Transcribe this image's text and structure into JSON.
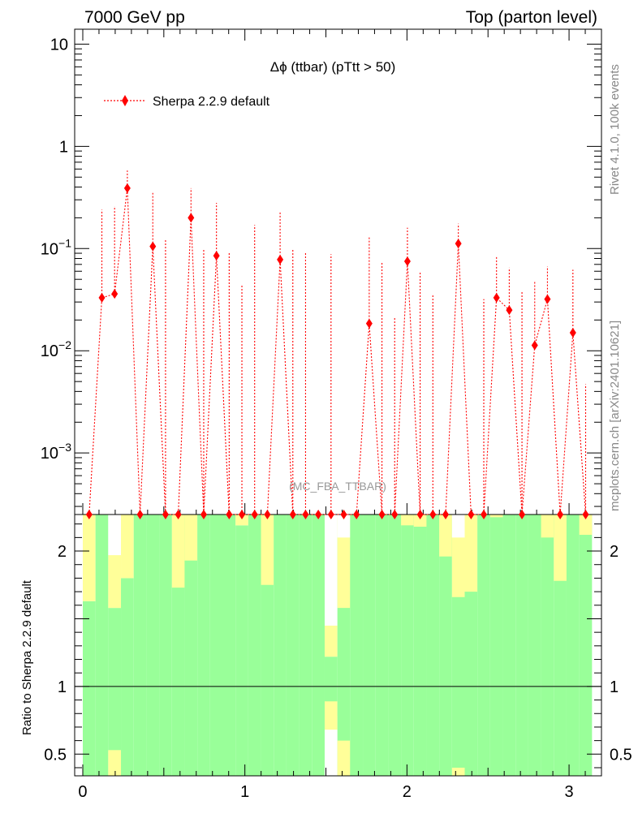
{
  "header": {
    "left": "7000 GeV pp",
    "right": "Top (parton level)"
  },
  "side_labels": {
    "rivet": "Rivet 4.1.0,  100k events",
    "mcplots": "mcplots.cern.ch [arXiv:2401.10621]"
  },
  "colors": {
    "series": "#ff0000",
    "band_inner": "#99ff99",
    "band_outer": "#ffff99"
  },
  "chart_data": [
    {
      "type": "scatter",
      "title": "Δϕ (ttbar) (pTtt > 50)",
      "watermark": "(MC_FBA_TTBAR)",
      "yscale": "log",
      "ylim": [
        0.00025,
        14
      ],
      "xlim": [
        -0.05,
        3.2
      ],
      "yticks": [
        {
          "value": 0.001,
          "label": "10",
          "exp": "−3"
        },
        {
          "value": 0.01,
          "label": "10",
          "exp": "−2"
        },
        {
          "value": 0.1,
          "label": "10",
          "exp": "−1"
        },
        {
          "value": 1,
          "label": "1",
          "exp": ""
        },
        {
          "value": 10,
          "label": "10",
          "exp": ""
        }
      ],
      "legend": {
        "position": "top-left",
        "entries": [
          "Sherpa 2.2.9 default"
        ]
      },
      "series": [
        {
          "name": "Sherpa 2.2.9 default",
          "x": [
            0.0393,
            0.1178,
            0.1963,
            0.2749,
            0.3534,
            0.432,
            0.5105,
            0.589,
            0.6676,
            0.7461,
            0.8247,
            0.9032,
            0.9817,
            1.0603,
            1.1388,
            1.2174,
            1.2959,
            1.3744,
            1.453,
            1.5315,
            1.6101,
            1.6886,
            1.7671,
            1.8457,
            1.9242,
            2.0028,
            2.0813,
            2.1598,
            2.2384,
            2.3169,
            2.3955,
            2.474,
            2.5525,
            2.6311,
            2.7096,
            2.7882,
            2.8667,
            2.9452,
            3.0238,
            3.1023
          ],
          "y": [
            0.00025,
            0.033,
            0.036,
            0.39,
            0.00025,
            0.105,
            0.00025,
            0.00025,
            0.2,
            0.00025,
            0.085,
            0.00025,
            0.00025,
            0.00025,
            0.00025,
            0.078,
            0.00025,
            0.00025,
            0.00025,
            0.00025,
            0.00025,
            0.00025,
            0.0185,
            0.00025,
            0.00025,
            0.075,
            0.00025,
            0.00025,
            0.00025,
            0.112,
            0.00025,
            0.00025,
            0.033,
            0.025,
            0.00025,
            0.0113,
            0.032,
            0.00025,
            0.015,
            0.00025
          ],
          "yerr_up": [
            0.00025,
            0.24,
            0.26,
            0.58,
            0.00025,
            0.35,
            0.125,
            0.00025,
            0.39,
            0.1,
            0.28,
            0.09,
            0.045,
            0.17,
            0.00025,
            0.23,
            0.1,
            0.09,
            0.00025,
            0.088,
            0.00025,
            0.00025,
            0.13,
            0.075,
            0.021,
            0.16,
            0.06,
            0.036,
            0.00025,
            0.175,
            0.00025,
            0.032,
            0.085,
            0.065,
            0.038,
            0.048,
            0.067,
            0.00025,
            0.062,
            0.0047
          ]
        }
      ]
    },
    {
      "type": "bar",
      "ylabel": "Ratio to Sherpa 2.2.9 default",
      "ylim": [
        0.34,
        2.27
      ],
      "xlim": [
        -0.05,
        3.2
      ],
      "xticks": [
        0,
        1,
        2,
        3
      ],
      "yticks": [
        0.5,
        1,
        2
      ],
      "reference_line": 1,
      "bin_edges": [
        0,
        0.0785,
        0.1571,
        0.2356,
        0.3142,
        0.3927,
        0.4712,
        0.5498,
        0.6283,
        0.7069,
        0.7854,
        0.8639,
        0.9425,
        1.021,
        1.0996,
        1.1781,
        1.2566,
        1.3352,
        1.4137,
        1.4923,
        1.5708,
        1.6493,
        1.7279,
        1.8064,
        1.885,
        1.9635,
        2.042,
        2.1206,
        2.1991,
        2.2777,
        2.3562,
        2.4347,
        2.5133,
        2.5918,
        2.6704,
        2.7489,
        2.8274,
        2.906,
        2.9845,
        3.0631,
        3.1416
      ],
      "inner_band": [
        [
          0.34,
          1.63
        ],
        [
          0.34,
          2.27
        ],
        [
          0.52,
          1.58
        ],
        [
          0.34,
          1.8
        ],
        [
          0.34,
          2.27
        ],
        [
          0.34,
          2.27
        ],
        [
          0.34,
          2.27
        ],
        [
          0.34,
          2.27
        ],
        [
          0.34,
          2.27
        ],
        [
          0.34,
          2.27
        ],
        [
          0.34,
          2.27
        ],
        [
          0.34,
          2.27
        ],
        [
          0.34,
          2.19
        ],
        [
          0.34,
          2.27
        ],
        [
          0.34,
          2.27
        ],
        [
          0.34,
          2.27
        ],
        [
          0.34,
          2.27
        ],
        [
          0.34,
          2.27
        ],
        [
          0.34,
          2.27
        ],
        [
          0.78,
          1.22
        ],
        [
          0.34,
          2.27
        ],
        [
          0.34,
          2.27
        ],
        [
          0.34,
          2.27
        ],
        [
          0.34,
          2.27
        ],
        [
          0.34,
          2.27
        ],
        [
          0.34,
          2.27
        ],
        [
          0.34,
          2.27
        ],
        [
          0.34,
          2.27
        ],
        [
          0.34,
          2.27
        ],
        [
          0.34,
          2.27
        ],
        [
          0.34,
          2.27
        ],
        [
          0.34,
          2.27
        ],
        [
          0.34,
          2.27
        ],
        [
          0.34,
          2.27
        ],
        [
          0.34,
          2.27
        ],
        [
          0.34,
          2.27
        ],
        [
          0.34,
          2.27
        ],
        [
          0.34,
          2.27
        ],
        [
          0.34,
          2.27
        ],
        [
          0.34,
          2.27
        ]
      ],
      "outer_band": [
        [
          0.34,
          2.27
        ],
        [
          0.34,
          2.27
        ],
        [
          0.34,
          2.27
        ],
        [
          0.34,
          2.27
        ],
        [
          0.34,
          2.27
        ],
        [
          0.34,
          2.27
        ],
        [
          0.34,
          2.27
        ],
        [
          0.34,
          2.27
        ],
        [
          0.34,
          2.27
        ],
        [
          0.34,
          2.27
        ],
        [
          0.34,
          2.27
        ],
        [
          0.34,
          2.27
        ],
        [
          0.34,
          2.27
        ],
        [
          0.34,
          2.27
        ],
        [
          0.34,
          2.27
        ],
        [
          0.34,
          2.27
        ],
        [
          0.34,
          2.27
        ],
        [
          0.34,
          2.27
        ],
        [
          0.34,
          2.27
        ],
        [
          0.68,
          1.45
        ],
        [
          0.34,
          2.27
        ],
        [
          0.34,
          2.27
        ],
        [
          0.34,
          2.27
        ],
        [
          0.34,
          2.27
        ],
        [
          0.34,
          2.27
        ],
        [
          0.34,
          2.27
        ],
        [
          0.34,
          2.27
        ],
        [
          0.34,
          2.27
        ],
        [
          0.34,
          2.27
        ],
        [
          0.34,
          2.27
        ],
        [
          0.34,
          2.27
        ],
        [
          0.34,
          2.27
        ],
        [
          0.34,
          2.27
        ],
        [
          0.34,
          2.27
        ],
        [
          0.34,
          2.27
        ],
        [
          0.34,
          2.27
        ],
        [
          0.34,
          2.27
        ],
        [
          0.34,
          2.27
        ],
        [
          0.34,
          2.27
        ],
        [
          0.34,
          2.27
        ]
      ],
      "outer_low_override": [
        [
          null,
          null
        ],
        [
          null,
          null
        ],
        [
          0.34,
          0.53
        ],
        [
          null,
          null
        ],
        [
          null,
          null
        ],
        [
          null,
          null
        ],
        [
          null,
          null
        ],
        [
          null,
          null
        ],
        [
          null,
          null
        ],
        [
          null,
          null
        ],
        [
          null,
          null
        ],
        [
          null,
          null
        ],
        [
          null,
          null
        ],
        [
          null,
          null
        ],
        [
          null,
          null
        ],
        [
          null,
          null
        ],
        [
          null,
          null
        ],
        [
          null,
          null
        ],
        [
          null,
          null
        ],
        [
          0.68,
          0.89
        ],
        [
          0.34,
          0.6
        ],
        [
          null,
          null
        ],
        [
          null,
          null
        ],
        [
          null,
          null
        ],
        [
          null,
          null
        ],
        [
          null,
          null
        ],
        [
          null,
          null
        ],
        [
          null,
          null
        ],
        [
          null,
          null
        ],
        [
          0.34,
          0.4
        ],
        [
          null,
          null
        ],
        [
          null,
          null
        ],
        [
          null,
          null
        ],
        [
          null,
          null
        ],
        [
          null,
          null
        ],
        [
          null,
          null
        ],
        [
          null,
          null
        ],
        [
          null,
          null
        ],
        [
          null,
          null
        ],
        [
          null,
          null
        ]
      ],
      "outer_high_override": [
        [
          1.63,
          2.27
        ],
        [
          null,
          null
        ],
        [
          1.58,
          1.97
        ],
        [
          1.8,
          2.27
        ],
        [
          null,
          null
        ],
        [
          null,
          null
        ],
        [
          null,
          null
        ],
        [
          1.73,
          2.27
        ],
        [
          1.93,
          2.27
        ],
        [
          null,
          null
        ],
        [
          null,
          null
        ],
        [
          null,
          null
        ],
        [
          2.19,
          2.27
        ],
        [
          null,
          null
        ],
        [
          1.75,
          2.27
        ],
        [
          null,
          null
        ],
        [
          null,
          null
        ],
        [
          null,
          null
        ],
        [
          null,
          null
        ],
        [
          1.22,
          1.45
        ],
        [
          1.58,
          2.27
        ],
        [
          null,
          null
        ],
        [
          null,
          null
        ],
        [
          null,
          null
        ],
        [
          null,
          null
        ],
        [
          2.19,
          2.27
        ],
        [
          2.18,
          2.27
        ],
        [
          null,
          null
        ],
        [
          1.96,
          2.27
        ],
        [
          1.66,
          2.27
        ],
        [
          1.7,
          2.27
        ],
        [
          null,
          null
        ],
        [
          2.25,
          2.27
        ],
        [
          null,
          null
        ],
        [
          null,
          null
        ],
        [
          null,
          null
        ],
        [
          2.1,
          2.27
        ],
        [
          1.78,
          2.27
        ],
        [
          null,
          null
        ],
        [
          2.12,
          2.27
        ]
      ],
      "white_gaps": [
        [
          null,
          null
        ],
        [
          null,
          null
        ],
        [
          1.97,
          2.27
        ],
        [
          null,
          null
        ],
        [
          null,
          null
        ],
        [
          null,
          null
        ],
        [
          null,
          null
        ],
        [
          null,
          null
        ],
        [
          null,
          null
        ],
        [
          null,
          null
        ],
        [
          null,
          null
        ],
        [
          null,
          null
        ],
        [
          null,
          null
        ],
        [
          null,
          null
        ],
        [
          null,
          null
        ],
        [
          null,
          null
        ],
        [
          null,
          null
        ],
        [
          null,
          null
        ],
        [
          null,
          null
        ],
        [
          1.45,
          2.27
        ],
        [
          null,
          null
        ],
        [
          null,
          null
        ],
        [
          null,
          null
        ],
        [
          null,
          null
        ],
        [
          null,
          null
        ],
        [
          null,
          null
        ],
        [
          null,
          null
        ],
        [
          null,
          null
        ],
        [
          null,
          null
        ],
        [
          2.1,
          2.27
        ],
        [
          null,
          null
        ],
        [
          null,
          null
        ],
        [
          null,
          null
        ],
        [
          null,
          null
        ],
        [
          null,
          null
        ],
        [
          null,
          null
        ],
        [
          null,
          null
        ],
        [
          null,
          null
        ],
        [
          null,
          null
        ],
        [
          null,
          null
        ]
      ],
      "white_gaps_low": [
        [
          null,
          null
        ],
        [
          null,
          null
        ],
        [
          null,
          null
        ],
        [
          null,
          null
        ],
        [
          null,
          null
        ],
        [
          null,
          null
        ],
        [
          null,
          null
        ],
        [
          null,
          null
        ],
        [
          null,
          null
        ],
        [
          null,
          null
        ],
        [
          null,
          null
        ],
        [
          null,
          null
        ],
        [
          null,
          null
        ],
        [
          null,
          null
        ],
        [
          null,
          null
        ],
        [
          null,
          null
        ],
        [
          null,
          null
        ],
        [
          null,
          null
        ],
        [
          null,
          null
        ],
        [
          0.34,
          0.68
        ],
        [
          null,
          null
        ],
        [
          null,
          null
        ],
        [
          null,
          null
        ],
        [
          null,
          null
        ],
        [
          null,
          null
        ],
        [
          null,
          null
        ],
        [
          null,
          null
        ],
        [
          null,
          null
        ],
        [
          null,
          null
        ],
        [
          null,
          null
        ],
        [
          null,
          null
        ],
        [
          null,
          null
        ],
        [
          null,
          null
        ],
        [
          null,
          null
        ],
        [
          null,
          null
        ],
        [
          null,
          null
        ],
        [
          null,
          null
        ],
        [
          null,
          null
        ],
        [
          null,
          null
        ],
        [
          null,
          null
        ]
      ],
      "extra_white": [
        [
          null,
          null
        ],
        [
          null,
          null
        ],
        [
          null,
          null
        ],
        [
          null,
          null
        ],
        [
          null,
          null
        ],
        [
          null,
          null
        ],
        [
          null,
          null
        ],
        [
          null,
          null
        ],
        [
          null,
          null
        ],
        [
          null,
          null
        ],
        [
          null,
          null
        ],
        [
          null,
          null
        ],
        [
          null,
          null
        ],
        [
          null,
          null
        ],
        [
          null,
          null
        ],
        [
          null,
          null
        ],
        [
          null,
          null
        ],
        [
          null,
          null
        ],
        [
          null,
          null
        ],
        [
          null,
          null
        ],
        [
          2.1,
          2.27
        ],
        [
          null,
          null
        ],
        [
          null,
          null
        ],
        [
          null,
          null
        ],
        [
          null,
          null
        ],
        [
          null,
          null
        ],
        [
          null,
          null
        ],
        [
          null,
          null
        ],
        [
          null,
          null
        ],
        [
          null,
          null
        ],
        [
          null,
          null
        ],
        [
          null,
          null
        ],
        [
          null,
          null
        ],
        [
          null,
          null
        ],
        [
          null,
          null
        ],
        [
          null,
          null
        ],
        [
          null,
          null
        ],
        [
          null,
          null
        ],
        [
          null,
          null
        ],
        [
          null,
          null
        ]
      ]
    }
  ]
}
